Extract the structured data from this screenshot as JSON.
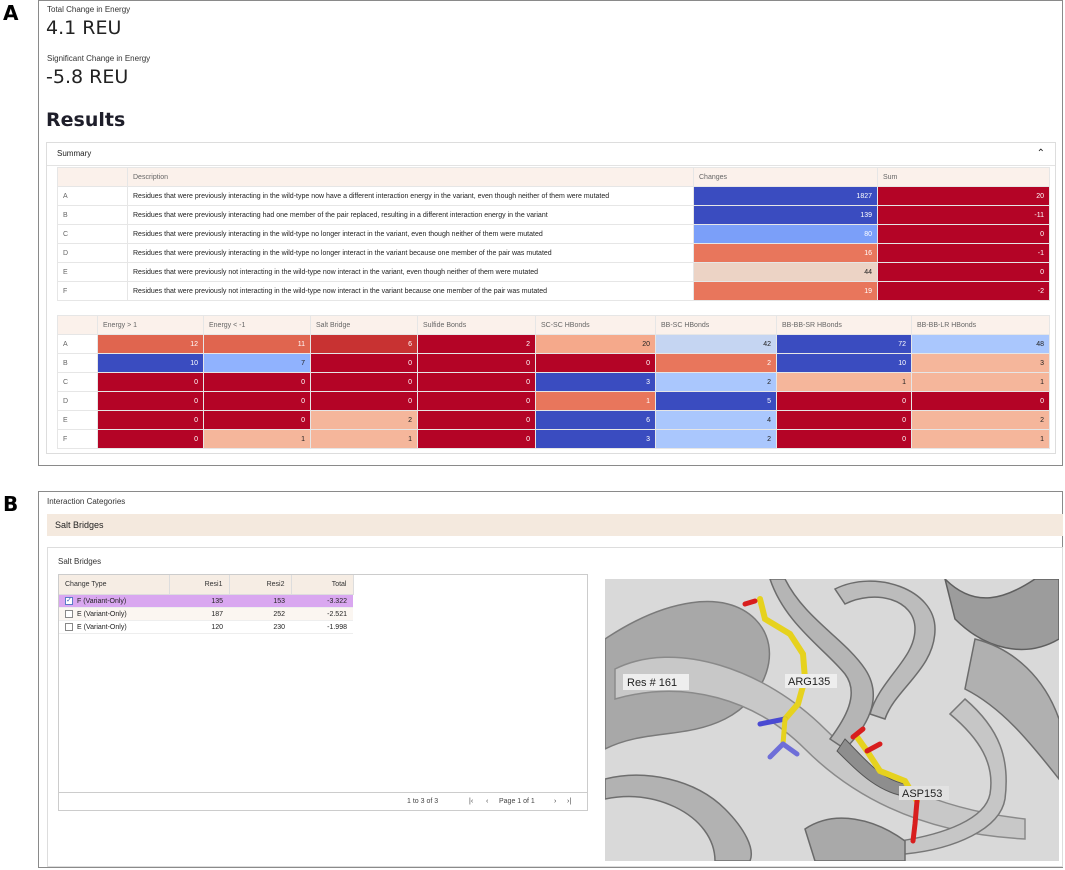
{
  "panel_a": {
    "letter": "A",
    "total_change_label": "Total Change in Energy",
    "total_change_value": "4.1 REU",
    "sig_change_label": "Significant Change in Energy",
    "sig_change_value": "-5.8 REU",
    "results_title": "Results",
    "summary_label": "Summary",
    "summary_table": {
      "headers": [
        "",
        "Description",
        "Changes",
        "Sum"
      ],
      "rows": [
        {
          "id": "A",
          "desc": "Residues that were previously interacting in the wild-type now have a different interaction energy in the variant, even though neither of them were mutated",
          "changes": "1827",
          "changes_color": "#3a4cc0",
          "sum": "20",
          "sum_color": "#b40426"
        },
        {
          "id": "B",
          "desc": "Residues that were previously interacting had one member of the pair replaced, resulting in a different interaction energy in the variant",
          "changes": "139",
          "changes_color": "#3a4cc0",
          "sum": "-11",
          "sum_color": "#b40426"
        },
        {
          "id": "C",
          "desc": "Residues that were previously interacting in the wild-type no longer interact in the variant, even though neither of them were mutated",
          "changes": "80",
          "changes_color": "#7b9ff9",
          "sum": "0",
          "sum_color": "#b40426"
        },
        {
          "id": "D",
          "desc": "Residues that were previously interacting in the wild-type no longer interact in the variant because one member of the pair was mutated",
          "changes": "16",
          "changes_color": "#e8765c",
          "sum": "-1",
          "sum_color": "#b40426"
        },
        {
          "id": "E",
          "desc": "Residues that were previously not interacting in the wild-type now interact in the variant, even though neither of them were mutated",
          "changes": "44",
          "changes_color": "#ecd3c5",
          "sum": "0",
          "sum_color": "#b40426"
        },
        {
          "id": "F",
          "desc": "Residues that were previously not interacting in the wild-type now interact in the variant because one member of the pair was mutated",
          "changes": "19",
          "changes_color": "#e8765c",
          "sum": "-2",
          "sum_color": "#b40426"
        }
      ]
    },
    "breakdown_table": {
      "headers": [
        "",
        "Energy > 1",
        "Energy < -1",
        "Salt Bridge",
        "Sulfide Bonds",
        "SC-SC HBonds",
        "BB-SC HBonds",
        "BB-BB-SR HBonds",
        "BB-BB-LR HBonds"
      ],
      "rows": [
        {
          "id": "A",
          "cells": [
            [
              "12",
              "#e0654f"
            ],
            [
              "11",
              "#e0654f"
            ],
            [
              "6",
              "#c83232"
            ],
            [
              "2",
              "#b40426"
            ],
            [
              "20",
              "#f5a98b"
            ],
            [
              "42",
              "#c5d5f2"
            ],
            [
              "72",
              "#3a4cc0"
            ],
            [
              "48",
              "#aac7fd"
            ]
          ]
        },
        {
          "id": "B",
          "cells": [
            [
              "10",
              "#3a4cc0"
            ],
            [
              "7",
              "#90b2fe"
            ],
            [
              "0",
              "#b40426"
            ],
            [
              "0",
              "#b40426"
            ],
            [
              "0",
              "#b40426"
            ],
            [
              "2",
              "#e8765c"
            ],
            [
              "10",
              "#3a4cc0"
            ],
            [
              "3",
              "#f5b69b"
            ]
          ]
        },
        {
          "id": "C",
          "cells": [
            [
              "0",
              "#b40426"
            ],
            [
              "0",
              "#b40426"
            ],
            [
              "0",
              "#b40426"
            ],
            [
              "0",
              "#b40426"
            ],
            [
              "3",
              "#3a4cc0"
            ],
            [
              "2",
              "#aac7fd"
            ],
            [
              "1",
              "#f5b69b"
            ],
            [
              "1",
              "#f5b69b"
            ]
          ]
        },
        {
          "id": "D",
          "cells": [
            [
              "0",
              "#b40426"
            ],
            [
              "0",
              "#b40426"
            ],
            [
              "0",
              "#b40426"
            ],
            [
              "0",
              "#b40426"
            ],
            [
              "1",
              "#e8765c"
            ],
            [
              "5",
              "#3a4cc0"
            ],
            [
              "0",
              "#b40426"
            ],
            [
              "0",
              "#b40426"
            ]
          ]
        },
        {
          "id": "E",
          "cells": [
            [
              "0",
              "#b40426"
            ],
            [
              "0",
              "#b40426"
            ],
            [
              "2",
              "#f5b69b"
            ],
            [
              "0",
              "#b40426"
            ],
            [
              "6",
              "#3a4cc0"
            ],
            [
              "4",
              "#aac7fd"
            ],
            [
              "0",
              "#b40426"
            ],
            [
              "2",
              "#f5b69b"
            ]
          ]
        },
        {
          "id": "F",
          "cells": [
            [
              "0",
              "#b40426"
            ],
            [
              "1",
              "#f5b69b"
            ],
            [
              "1",
              "#f5b69b"
            ],
            [
              "0",
              "#b40426"
            ],
            [
              "3",
              "#3a4cc0"
            ],
            [
              "2",
              "#aac7fd"
            ],
            [
              "0",
              "#b40426"
            ],
            [
              "1",
              "#f5b69b"
            ]
          ]
        }
      ]
    }
  },
  "panel_b": {
    "letter": "B",
    "section_title": "Interaction Categories",
    "tab_header": "Salt Bridges",
    "inner_title": "Salt Bridges",
    "grid": {
      "headers": [
        "Change Type",
        "Resi1",
        "Resi2",
        "Total"
      ],
      "rows": [
        {
          "type": "F (Variant-Only)",
          "resi1": "135",
          "resi2": "153",
          "total": "-3.322",
          "selected": true
        },
        {
          "type": "E (Variant-Only)",
          "resi1": "187",
          "resi2": "252",
          "total": "-2.521",
          "selected": false
        },
        {
          "type": "E (Variant-Only)",
          "resi1": "120",
          "resi2": "230",
          "total": "-1.998",
          "selected": false
        }
      ],
      "pager": {
        "range": "1 to 3 of 3",
        "page": "Page 1 of 1"
      }
    },
    "viewer": {
      "label_res": "Res # 161",
      "label_arg": "ARG135",
      "label_asp": "ASP153"
    }
  }
}
